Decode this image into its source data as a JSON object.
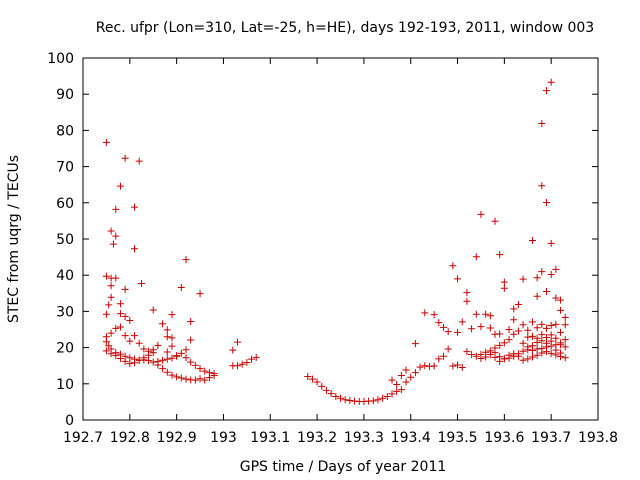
{
  "chart_data": {
    "type": "scatter",
    "title": "Rec. ufpr (Lon=310, Lat=-25, h=HE), days 192-193, 2011, window 003",
    "xlabel": "GPS time / Days of year 2011",
    "ylabel": "STEC from uqrg / TECUs",
    "xlim": [
      192.7,
      193.8
    ],
    "ylim": [
      0,
      100
    ],
    "xticks": [
      192.7,
      192.8,
      192.9,
      193,
      193.1,
      193.2,
      193.3,
      193.4,
      193.5,
      193.6,
      193.7,
      193.8
    ],
    "xtick_labels": [
      "192.7",
      "192.8",
      "192.9",
      "193",
      "193.1",
      "193.2",
      "193.3",
      "193.4",
      "193.5",
      "193.6",
      "193.7",
      "193.8"
    ],
    "yticks": [
      0,
      10,
      20,
      30,
      40,
      50,
      60,
      70,
      80,
      90,
      100
    ],
    "ytick_labels": [
      "0",
      "10",
      "20",
      "30",
      "40",
      "50",
      "60",
      "70",
      "80",
      "90",
      "100"
    ],
    "grid": false,
    "marker": "+",
    "color": "#cc0000",
    "series": [
      {
        "name": "STEC",
        "points": [
          [
            192.75,
            76.7
          ],
          [
            192.76,
            52.2
          ],
          [
            192.77,
            50.8
          ],
          [
            192.77,
            58.2
          ],
          [
            192.78,
            64.6
          ],
          [
            192.79,
            72.3
          ],
          [
            192.81,
            58.8
          ],
          [
            192.82,
            71.5
          ],
          [
            192.81,
            47.3
          ],
          [
            192.75,
            39.7
          ],
          [
            192.76,
            39.2
          ],
          [
            192.77,
            39.2
          ],
          [
            192.765,
            48.6
          ],
          [
            192.76,
            37.1
          ],
          [
            192.755,
            31.8
          ],
          [
            192.75,
            29.2
          ],
          [
            192.79,
            36.1
          ],
          [
            192.825,
            37.7
          ],
          [
            192.76,
            33.9
          ],
          [
            192.78,
            32.1
          ],
          [
            192.78,
            29.4
          ],
          [
            192.79,
            28.6
          ],
          [
            192.8,
            27.5
          ],
          [
            192.85,
            30.4
          ],
          [
            192.92,
            44.3
          ],
          [
            192.91,
            36.6
          ],
          [
            192.93,
            27.2
          ],
          [
            192.95,
            34.9
          ],
          [
            192.89,
            29.1
          ],
          [
            192.75,
            23.0
          ],
          [
            192.76,
            24.0
          ],
          [
            192.77,
            25.3
          ],
          [
            192.78,
            25.7
          ],
          [
            192.79,
            23.3
          ],
          [
            192.8,
            21.8
          ],
          [
            192.81,
            23.3
          ],
          [
            192.82,
            21.2
          ],
          [
            192.83,
            19.6
          ],
          [
            192.85,
            19.4
          ],
          [
            192.86,
            20.6
          ],
          [
            192.87,
            26.6
          ],
          [
            192.88,
            24.9
          ],
          [
            192.88,
            23.0
          ],
          [
            192.89,
            20.4
          ],
          [
            192.89,
            22.7
          ],
          [
            192.93,
            22.1
          ],
          [
            192.75,
            21.6
          ],
          [
            192.755,
            20.5
          ],
          [
            192.76,
            19.6
          ],
          [
            192.77,
            18.6
          ],
          [
            192.78,
            18.2
          ],
          [
            192.79,
            17.6
          ],
          [
            192.8,
            17.2
          ],
          [
            192.81,
            16.8
          ],
          [
            192.82,
            16.5
          ],
          [
            192.83,
            16.6
          ],
          [
            192.84,
            16.4
          ],
          [
            192.85,
            16.0
          ],
          [
            192.86,
            16.2
          ],
          [
            192.87,
            16.5
          ],
          [
            192.88,
            16.8
          ],
          [
            192.89,
            17.1
          ],
          [
            192.9,
            17.6
          ],
          [
            192.91,
            18.4
          ],
          [
            192.92,
            17.2
          ],
          [
            192.93,
            16.0
          ],
          [
            192.94,
            15.1
          ],
          [
            192.95,
            14.2
          ],
          [
            192.96,
            13.5
          ],
          [
            192.97,
            13.1
          ],
          [
            192.98,
            12.8
          ],
          [
            192.75,
            19.1
          ],
          [
            192.76,
            18.3
          ],
          [
            192.77,
            17.8
          ],
          [
            192.78,
            17.0
          ],
          [
            192.79,
            16.2
          ],
          [
            192.8,
            15.6
          ],
          [
            192.81,
            15.8
          ],
          [
            192.82,
            16.5
          ],
          [
            192.83,
            17.2
          ],
          [
            192.84,
            17.9
          ],
          [
            192.85,
            18.6
          ],
          [
            192.86,
            15.2
          ],
          [
            192.87,
            14.2
          ],
          [
            192.88,
            13.2
          ],
          [
            192.89,
            12.4
          ],
          [
            192.9,
            11.9
          ],
          [
            192.91,
            11.6
          ],
          [
            192.92,
            11.3
          ],
          [
            192.93,
            11.1
          ],
          [
            192.94,
            11.0
          ],
          [
            192.95,
            11.4
          ],
          [
            192.96,
            11.0
          ],
          [
            192.97,
            11.7
          ],
          [
            192.98,
            12.3
          ],
          [
            192.92,
            19.4
          ],
          [
            192.9,
            17.8
          ],
          [
            192.88,
            18.8
          ],
          [
            192.84,
            19.0
          ],
          [
            193.02,
            19.3
          ],
          [
            193.03,
            21.5
          ],
          [
            193.02,
            15.0
          ],
          [
            193.03,
            15.0
          ],
          [
            193.04,
            15.4
          ],
          [
            193.05,
            15.9
          ],
          [
            193.06,
            16.8
          ],
          [
            193.07,
            17.3
          ],
          [
            193.18,
            12.0
          ],
          [
            193.19,
            11.3
          ],
          [
            193.2,
            10.5
          ],
          [
            193.21,
            9.3
          ],
          [
            193.22,
            8.2
          ],
          [
            193.23,
            7.3
          ],
          [
            193.24,
            6.5
          ],
          [
            193.25,
            6.0
          ],
          [
            193.26,
            5.6
          ],
          [
            193.27,
            5.4
          ],
          [
            193.28,
            5.2
          ],
          [
            193.29,
            5.1
          ],
          [
            193.3,
            5.1
          ],
          [
            193.31,
            5.2
          ],
          [
            193.32,
            5.3
          ],
          [
            193.33,
            5.6
          ],
          [
            193.34,
            6.0
          ],
          [
            193.35,
            6.5
          ],
          [
            193.36,
            7.2
          ],
          [
            193.37,
            7.9
          ],
          [
            193.38,
            8.4
          ],
          [
            193.36,
            11.0
          ],
          [
            193.37,
            9.8
          ],
          [
            193.38,
            12.3
          ],
          [
            193.39,
            13.8
          ],
          [
            193.39,
            10.5
          ],
          [
            193.4,
            11.8
          ],
          [
            193.41,
            13.1
          ],
          [
            193.41,
            21.1
          ],
          [
            193.42,
            14.6
          ],
          [
            193.43,
            15.0
          ],
          [
            193.43,
            29.6
          ],
          [
            193.45,
            29.1
          ],
          [
            193.46,
            26.9
          ],
          [
            193.47,
            25.6
          ],
          [
            193.48,
            24.4
          ],
          [
            193.44,
            14.8
          ],
          [
            193.45,
            14.9
          ],
          [
            193.46,
            16.9
          ],
          [
            193.47,
            17.6
          ],
          [
            193.48,
            19.6
          ],
          [
            193.49,
            14.9
          ],
          [
            193.5,
            15.2
          ],
          [
            193.51,
            14.5
          ],
          [
            193.49,
            42.6
          ],
          [
            193.5,
            39.0
          ],
          [
            193.5,
            24.2
          ],
          [
            193.51,
            27.1
          ],
          [
            193.52,
            35.2
          ],
          [
            193.52,
            32.8
          ],
          [
            193.53,
            25.2
          ],
          [
            193.54,
            45.1
          ],
          [
            193.54,
            29.2
          ],
          [
            193.55,
            25.8
          ],
          [
            193.55,
            56.8
          ],
          [
            193.56,
            29.2
          ],
          [
            193.57,
            28.8
          ],
          [
            193.57,
            25.4
          ],
          [
            193.58,
            54.9
          ],
          [
            193.58,
            23.7
          ],
          [
            193.59,
            45.7
          ],
          [
            193.59,
            23.8
          ],
          [
            193.52,
            18.9
          ],
          [
            193.53,
            18.1
          ],
          [
            193.54,
            17.6
          ],
          [
            193.55,
            18.1
          ],
          [
            193.56,
            18.7
          ],
          [
            193.57,
            19.1
          ],
          [
            193.58,
            19.9
          ],
          [
            193.59,
            20.6
          ],
          [
            193.6,
            21.3
          ],
          [
            193.61,
            22.2
          ],
          [
            193.62,
            23.7
          ],
          [
            193.63,
            24.6
          ],
          [
            193.6,
            38.1
          ],
          [
            193.6,
            36.4
          ],
          [
            193.61,
            25.0
          ],
          [
            193.62,
            30.7
          ],
          [
            193.62,
            27.7
          ],
          [
            193.63,
            31.9
          ],
          [
            193.64,
            38.9
          ],
          [
            193.64,
            26.3
          ],
          [
            193.65,
            24.8
          ],
          [
            193.65,
            22.9
          ],
          [
            193.66,
            49.6
          ],
          [
            193.66,
            23.1
          ],
          [
            193.67,
            39.3
          ],
          [
            193.67,
            34.2
          ],
          [
            193.68,
            81.9
          ],
          [
            193.68,
            64.7
          ],
          [
            193.68,
            41.0
          ],
          [
            193.69,
            91.0
          ],
          [
            193.69,
            60.1
          ],
          [
            193.69,
            35.5
          ],
          [
            193.7,
            93.3
          ],
          [
            193.7,
            48.8
          ],
          [
            193.7,
            40.2
          ],
          [
            193.71,
            41.6
          ],
          [
            193.71,
            33.7
          ],
          [
            193.72,
            33.1
          ],
          [
            193.72,
            30.3
          ],
          [
            193.73,
            28.3
          ],
          [
            193.73,
            26.3
          ],
          [
            193.55,
            17.0
          ],
          [
            193.56,
            17.4
          ],
          [
            193.57,
            18.1
          ],
          [
            193.58,
            18.6
          ],
          [
            193.59,
            17.5
          ],
          [
            193.6,
            16.9
          ],
          [
            193.61,
            17.1
          ],
          [
            193.62,
            17.6
          ],
          [
            193.63,
            18.3
          ],
          [
            193.64,
            19.0
          ],
          [
            193.65,
            19.4
          ],
          [
            193.66,
            19.2
          ],
          [
            193.67,
            19.6
          ],
          [
            193.68,
            19.8
          ],
          [
            193.69,
            20.2
          ],
          [
            193.7,
            20.4
          ],
          [
            193.71,
            20.8
          ],
          [
            193.72,
            21.3
          ],
          [
            193.73,
            22.2
          ],
          [
            193.58,
            17.3
          ],
          [
            193.59,
            16.2
          ],
          [
            193.6,
            16.9
          ],
          [
            193.61,
            17.9
          ],
          [
            193.62,
            18.3
          ],
          [
            193.63,
            17.6
          ],
          [
            193.64,
            16.5
          ],
          [
            193.65,
            16.9
          ],
          [
            193.66,
            17.4
          ],
          [
            193.67,
            17.9
          ],
          [
            193.68,
            18.5
          ],
          [
            193.69,
            18.9
          ],
          [
            193.7,
            18.4
          ],
          [
            193.71,
            18.0
          ],
          [
            193.72,
            17.5
          ],
          [
            193.73,
            17.2
          ],
          [
            193.66,
            27.1
          ],
          [
            193.67,
            25.5
          ],
          [
            193.67,
            22.6
          ],
          [
            193.68,
            26.4
          ],
          [
            193.68,
            23.6
          ],
          [
            193.69,
            25.3
          ],
          [
            193.69,
            21.2
          ],
          [
            193.7,
            26.1
          ],
          [
            193.7,
            23.5
          ],
          [
            193.71,
            26.4
          ],
          [
            193.71,
            22.6
          ],
          [
            193.72,
            24.2
          ],
          [
            193.72,
            20.8
          ],
          [
            193.73,
            20.2
          ],
          [
            193.64,
            21.2
          ],
          [
            193.65,
            20.2
          ],
          [
            193.66,
            20.5
          ],
          [
            193.67,
            21.4
          ],
          [
            193.68,
            21.9
          ],
          [
            193.69,
            22.8
          ],
          [
            193.7,
            21.8
          ],
          [
            193.71,
            19.3
          ],
          [
            193.72,
            18.5
          ]
        ]
      }
    ]
  }
}
